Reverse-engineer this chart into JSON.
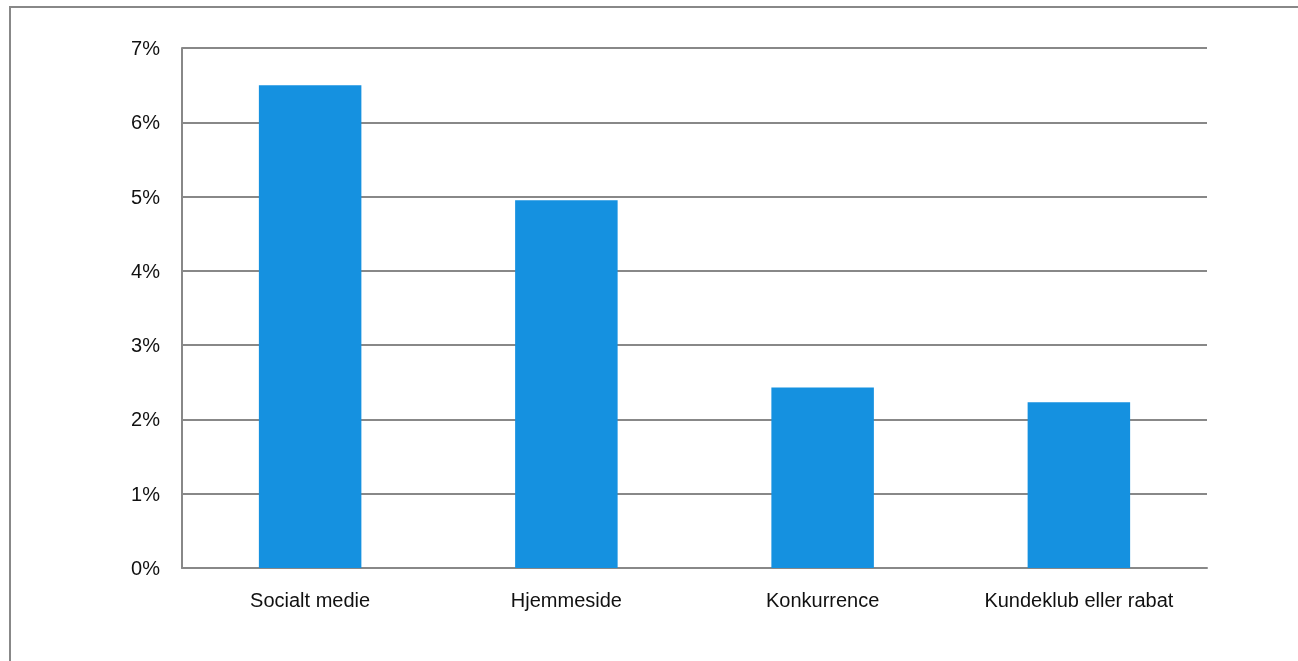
{
  "chart_data": {
    "type": "bar",
    "categories": [
      "Socialt medie",
      "Hjemmeside",
      "Konkurrence",
      "Kundeklub eller rabat"
    ],
    "values": [
      6.5,
      4.95,
      2.43,
      2.23
    ],
    "color": "#1591e0",
    "ylim": [
      0,
      7
    ],
    "yticks": [
      {
        "value": 0,
        "label": "0%"
      },
      {
        "value": 1,
        "label": "1%"
      },
      {
        "value": 2,
        "label": "2%"
      },
      {
        "value": 3,
        "label": "3%"
      },
      {
        "value": 4,
        "label": "4%"
      },
      {
        "value": 5,
        "label": "5%"
      },
      {
        "value": 6,
        "label": "6%"
      },
      {
        "value": 7,
        "label": "7%"
      }
    ],
    "grid": "y"
  }
}
